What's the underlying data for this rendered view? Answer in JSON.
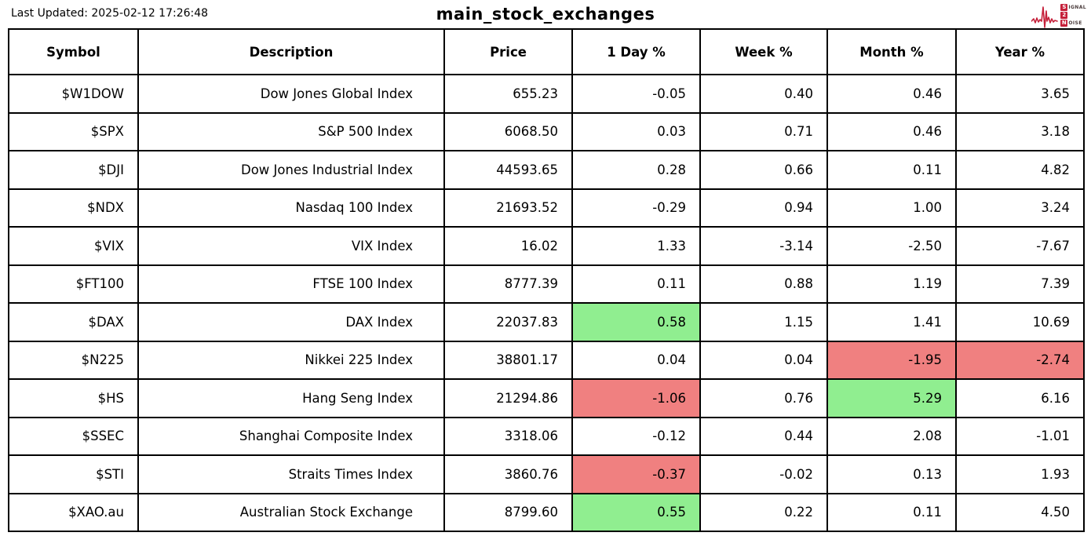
{
  "header": {
    "last_updated": "Last Updated: 2025-02-12 17:26:48",
    "title": "main_stock_exchanges",
    "logo": {
      "line1_initial": "S",
      "line1_rest": "IGNAL",
      "line2_initial": "2",
      "line3_initial": "N",
      "line3_rest": "OISE"
    }
  },
  "highlight_colors": {
    "green": "#90EE90",
    "red": "#F08080"
  },
  "logo_color": "#c5203a",
  "chart_data": {
    "type": "table",
    "title": "main_stock_exchanges",
    "columns": [
      "Symbol",
      "Description",
      "Price",
      "1 Day %",
      "Week %",
      "Month %",
      "Year %"
    ],
    "rows": [
      {
        "cells": [
          "$W1DOW",
          "Dow Jones Global Index",
          "655.23",
          "-0.05",
          "0.40",
          "0.46",
          "3.65"
        ],
        "highlight": [
          "",
          "",
          "",
          "",
          "",
          "",
          ""
        ]
      },
      {
        "cells": [
          "$SPX",
          "S&P 500 Index",
          "6068.50",
          "0.03",
          "0.71",
          "0.46",
          "3.18"
        ],
        "highlight": [
          "",
          "",
          "",
          "",
          "",
          "",
          ""
        ]
      },
      {
        "cells": [
          "$DJI",
          "Dow Jones Industrial Index",
          "44593.65",
          "0.28",
          "0.66",
          "0.11",
          "4.82"
        ],
        "highlight": [
          "",
          "",
          "",
          "",
          "",
          "",
          ""
        ]
      },
      {
        "cells": [
          "$NDX",
          "Nasdaq 100 Index",
          "21693.52",
          "-0.29",
          "0.94",
          "1.00",
          "3.24"
        ],
        "highlight": [
          "",
          "",
          "",
          "",
          "",
          "",
          ""
        ]
      },
      {
        "cells": [
          "$VIX",
          "VIX Index",
          "16.02",
          "1.33",
          "-3.14",
          "-2.50",
          "-7.67"
        ],
        "highlight": [
          "",
          "",
          "",
          "",
          "",
          "",
          ""
        ]
      },
      {
        "cells": [
          "$FT100",
          "FTSE 100 Index",
          "8777.39",
          "0.11",
          "0.88",
          "1.19",
          "7.39"
        ],
        "highlight": [
          "",
          "",
          "",
          "",
          "",
          "",
          ""
        ]
      },
      {
        "cells": [
          "$DAX",
          "DAX Index",
          "22037.83",
          "0.58",
          "1.15",
          "1.41",
          "10.69"
        ],
        "highlight": [
          "",
          "",
          "",
          "green",
          "",
          "",
          ""
        ]
      },
      {
        "cells": [
          "$N225",
          "Nikkei 225 Index",
          "38801.17",
          "0.04",
          "0.04",
          "-1.95",
          "-2.74"
        ],
        "highlight": [
          "",
          "",
          "",
          "",
          "",
          "red",
          "red"
        ]
      },
      {
        "cells": [
          "$HS",
          "Hang Seng Index",
          "21294.86",
          "-1.06",
          "0.76",
          "5.29",
          "6.16"
        ],
        "highlight": [
          "",
          "",
          "",
          "red",
          "",
          "green",
          ""
        ]
      },
      {
        "cells": [
          "$SSEC",
          "Shanghai Composite Index",
          "3318.06",
          "-0.12",
          "0.44",
          "2.08",
          "-1.01"
        ],
        "highlight": [
          "",
          "",
          "",
          "",
          "",
          "",
          ""
        ]
      },
      {
        "cells": [
          "$STI",
          "Straits Times Index",
          "3860.76",
          "-0.37",
          "-0.02",
          "0.13",
          "1.93"
        ],
        "highlight": [
          "",
          "",
          "",
          "red",
          "",
          "",
          ""
        ]
      },
      {
        "cells": [
          "$XAO.au",
          "Australian Stock Exchange",
          "8799.60",
          "0.55",
          "0.22",
          "0.11",
          "4.50"
        ],
        "highlight": [
          "",
          "",
          "",
          "green",
          "",
          "",
          ""
        ]
      }
    ]
  }
}
